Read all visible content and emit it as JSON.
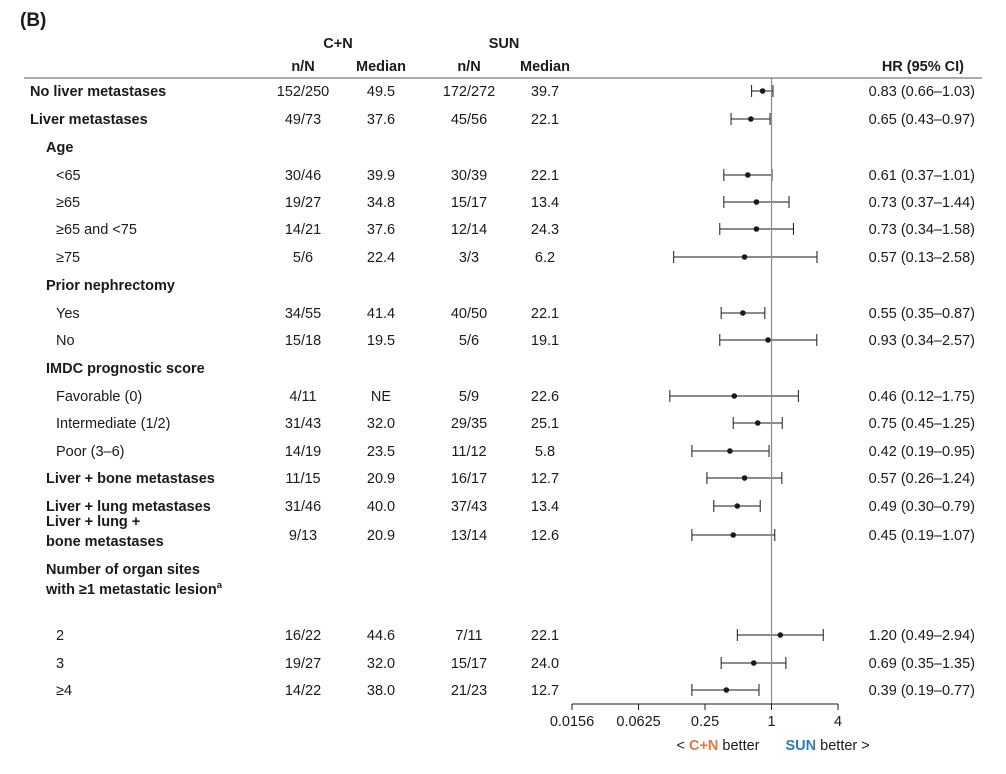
{
  "panel_label": "(B)",
  "groups": {
    "cn": {
      "label": "C+N",
      "color": "#e07b39"
    },
    "sun": {
      "label": "SUN",
      "color": "#2e7db8"
    }
  },
  "columns": {
    "nN_cn": "n/N",
    "median_cn": "Median",
    "nN_sun": "n/N",
    "median_sun": "Median",
    "hr": "HR (95% CI)"
  },
  "direction_labels": {
    "left_prefix": "<",
    "left_group": "C+N",
    "left_suffix": "better",
    "right_group": "SUN",
    "right_suffix": "better >"
  },
  "chart_data": {
    "type": "forest",
    "x_scale": "log2",
    "x_ticks": [
      "0.0156",
      "0.0625",
      "0.25",
      "1",
      "4"
    ],
    "x_tick_values": [
      0.0156,
      0.0625,
      0.25,
      1,
      4
    ],
    "xlim": [
      0.0156,
      4
    ],
    "reference_line": 1,
    "rows": [
      {
        "label": "No liver metastases",
        "bold": true,
        "indent": 0,
        "cn_n": "152/250",
        "cn_median": "49.5",
        "sun_n": "172/272",
        "sun_median": "39.7",
        "hr": 0.83,
        "lo": 0.66,
        "hi": 1.03,
        "hr_text": "0.83 (0.66–1.03)"
      },
      {
        "label": "Liver metastases",
        "bold": true,
        "indent": 0,
        "cn_n": "49/73",
        "cn_median": "37.6",
        "sun_n": "45/56",
        "sun_median": "22.1",
        "hr": 0.65,
        "lo": 0.43,
        "hi": 0.97,
        "hr_text": "0.65 (0.43–0.97)"
      },
      {
        "label": "Age",
        "bold": true,
        "indent": 1,
        "header": true
      },
      {
        "label": "<65",
        "indent": 2,
        "cn_n": "30/46",
        "cn_median": "39.9",
        "sun_n": "30/39",
        "sun_median": "22.1",
        "hr": 0.61,
        "lo": 0.37,
        "hi": 1.01,
        "hr_text": "0.61 (0.37–1.01)"
      },
      {
        "label": "≥65",
        "indent": 2,
        "cn_n": "19/27",
        "cn_median": "34.8",
        "sun_n": "15/17",
        "sun_median": "13.4",
        "hr": 0.73,
        "lo": 0.37,
        "hi": 1.44,
        "hr_text": "0.73 (0.37–1.44)"
      },
      {
        "label": "≥65 and <75",
        "indent": 2,
        "cn_n": "14/21",
        "cn_median": "37.6",
        "sun_n": "12/14",
        "sun_median": "24.3",
        "hr": 0.73,
        "lo": 0.34,
        "hi": 1.58,
        "hr_text": "0.73 (0.34–1.58)"
      },
      {
        "label": "≥75",
        "indent": 2,
        "cn_n": "5/6",
        "cn_median": "22.4",
        "sun_n": "3/3",
        "sun_median": "6.2",
        "hr": 0.57,
        "lo": 0.13,
        "hi": 2.58,
        "hr_text": "0.57 (0.13–2.58)"
      },
      {
        "label": "Prior nephrectomy",
        "bold": true,
        "indent": 1,
        "header": true
      },
      {
        "label": "Yes",
        "indent": 2,
        "cn_n": "34/55",
        "cn_median": "41.4",
        "sun_n": "40/50",
        "sun_median": "22.1",
        "hr": 0.55,
        "lo": 0.35,
        "hi": 0.87,
        "hr_text": "0.55 (0.35–0.87)"
      },
      {
        "label": "No",
        "indent": 2,
        "cn_n": "15/18",
        "cn_median": "19.5",
        "sun_n": "5/6",
        "sun_median": "19.1",
        "hr": 0.93,
        "lo": 0.34,
        "hi": 2.57,
        "hr_text": "0.93 (0.34–2.57)"
      },
      {
        "label": "IMDC prognostic score",
        "bold": true,
        "indent": 1,
        "header": true
      },
      {
        "label": "Favorable (0)",
        "indent": 2,
        "cn_n": "4/11",
        "cn_median": "NE",
        "sun_n": "5/9",
        "sun_median": "22.6",
        "hr": 0.46,
        "lo": 0.12,
        "hi": 1.75,
        "hr_text": "0.46 (0.12–1.75)"
      },
      {
        "label": "Intermediate (1/2)",
        "indent": 2,
        "cn_n": "31/43",
        "cn_median": "32.0",
        "sun_n": "29/35",
        "sun_median": "25.1",
        "hr": 0.75,
        "lo": 0.45,
        "hi": 1.25,
        "hr_text": "0.75 (0.45–1.25)"
      },
      {
        "label": "Poor (3–6)",
        "indent": 2,
        "cn_n": "14/19",
        "cn_median": "23.5",
        "sun_n": "11/12",
        "sun_median": "5.8",
        "hr": 0.42,
        "lo": 0.19,
        "hi": 0.95,
        "hr_text": "0.42 (0.19–0.95)"
      },
      {
        "label": "Liver + bone metastases",
        "bold": true,
        "indent": 1,
        "cn_n": "11/15",
        "cn_median": "20.9",
        "sun_n": "16/17",
        "sun_median": "12.7",
        "hr": 0.57,
        "lo": 0.26,
        "hi": 1.24,
        "hr_text": "0.57 (0.26–1.24)"
      },
      {
        "label": "Liver + lung metastases",
        "bold": true,
        "indent": 1,
        "cn_n": "31/46",
        "cn_median": "40.0",
        "sun_n": "37/43",
        "sun_median": "13.4",
        "hr": 0.49,
        "lo": 0.3,
        "hi": 0.79,
        "hr_text": "0.49 (0.30–0.79)"
      },
      {
        "label": "Liver + lung +",
        "label2": "bone metastases",
        "bold": true,
        "indent": 1,
        "cn_n": "9/13",
        "cn_median": "20.9",
        "sun_n": "13/14",
        "sun_median": "12.6",
        "hr": 0.45,
        "lo": 0.19,
        "hi": 1.07,
        "hr_text": "0.45 (0.19–1.07)"
      },
      {
        "label": "Number of organ sites",
        "label2": "with ≥1 metastatic lesion",
        "label2_sup": "a",
        "bold": true,
        "indent": 1,
        "header": true
      },
      {
        "label": "2",
        "indent": 2,
        "cn_n": "16/22",
        "cn_median": "44.6",
        "sun_n": "7/11",
        "sun_median": "22.1",
        "hr": 1.2,
        "lo": 0.49,
        "hi": 2.94,
        "hr_text": "1.20 (0.49–2.94)"
      },
      {
        "label": "3",
        "indent": 2,
        "cn_n": "19/27",
        "cn_median": "32.0",
        "sun_n": "15/17",
        "sun_median": "24.0",
        "hr": 0.69,
        "lo": 0.35,
        "hi": 1.35,
        "hr_text": "0.69 (0.35–1.35)"
      },
      {
        "label": "≥4",
        "indent": 2,
        "cn_n": "14/22",
        "cn_median": "38.0",
        "sun_n": "21/23",
        "sun_median": "12.7",
        "hr": 0.39,
        "lo": 0.19,
        "hi": 0.77,
        "hr_text": "0.39 (0.19–0.77)"
      }
    ]
  }
}
